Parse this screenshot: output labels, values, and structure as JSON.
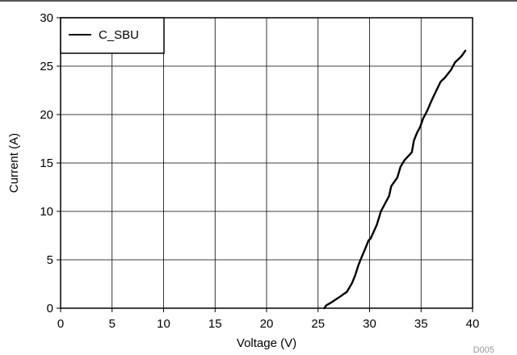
{
  "chart_data": {
    "type": "line",
    "xlabel": "Voltage (V)",
    "ylabel": "Current (A)",
    "xlim": [
      0,
      40
    ],
    "ylim": [
      0,
      30
    ],
    "x_ticks": [
      0,
      5,
      10,
      15,
      20,
      25,
      30,
      35,
      40
    ],
    "y_ticks": [
      0,
      5,
      10,
      15,
      20,
      25,
      30
    ],
    "grid": true,
    "legend_position": "top-left",
    "series": [
      {
        "name": "C_SBU",
        "color": "#000000",
        "x": [
          25.6,
          25.8,
          26.3,
          27.0,
          27.8,
          28.3,
          28.6,
          28.9,
          29.2,
          29.6,
          29.9,
          30.1,
          30.7,
          31.1,
          31.4,
          31.9,
          32.1,
          32.7,
          33.0,
          33.4,
          34.1,
          34.3,
          34.6,
          34.9,
          35.2,
          35.6,
          36.0,
          36.4,
          36.9,
          37.3,
          37.9,
          38.3,
          38.9,
          39.3
        ],
        "y": [
          0,
          0.3,
          0.6,
          1.1,
          1.7,
          2.6,
          3.4,
          4.4,
          5.2,
          6.2,
          7.0,
          7.2,
          8.6,
          10.0,
          10.6,
          11.6,
          12.6,
          13.5,
          14.6,
          15.3,
          16.1,
          17.3,
          18.1,
          18.7,
          19.6,
          20.4,
          21.4,
          22.3,
          23.4,
          23.8,
          24.6,
          25.4,
          26.0,
          26.6
        ]
      }
    ]
  },
  "footer_code": "D005"
}
